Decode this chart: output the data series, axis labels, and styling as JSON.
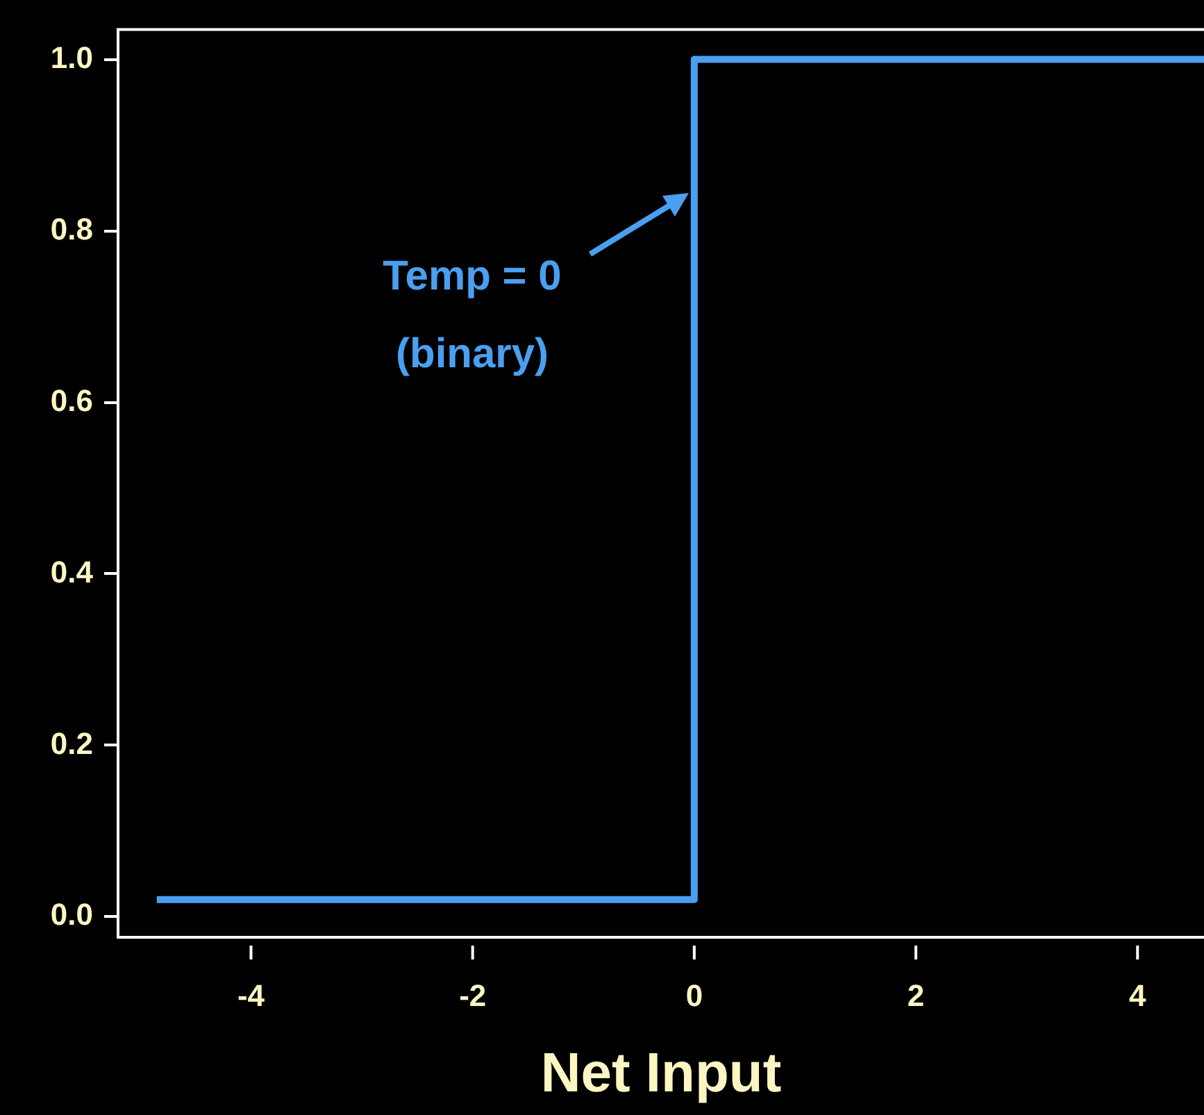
{
  "chart_data": {
    "type": "step",
    "xlabel": "Net Input",
    "x": [
      -4.85,
      0,
      4.6
    ],
    "series": [
      {
        "color": "#4a9ff0",
        "values": [
          0.02,
          1.0,
          1.0
        ]
      }
    ],
    "xlim": [
      -5.2,
      4.6
    ],
    "xticks": [
      -4,
      -2,
      0,
      2,
      4
    ],
    "ylim": [
      -0.024,
      1.035
    ],
    "yticks": [
      {
        "value": 0,
        "label": "0.0"
      },
      {
        "value": 0.2,
        "label": "0.2"
      },
      {
        "value": 0.4,
        "label": "0.4"
      },
      {
        "value": 0.6,
        "label": "0.6"
      },
      {
        "value": 0.8,
        "label": "0.8"
      },
      {
        "value": 1,
        "label": "1.0"
      }
    ],
    "annotations": [
      "Temp = 0\n(binary)"
    ],
    "grid": false,
    "legend": false,
    "marker": "none",
    "line_style": "solid"
  }
}
